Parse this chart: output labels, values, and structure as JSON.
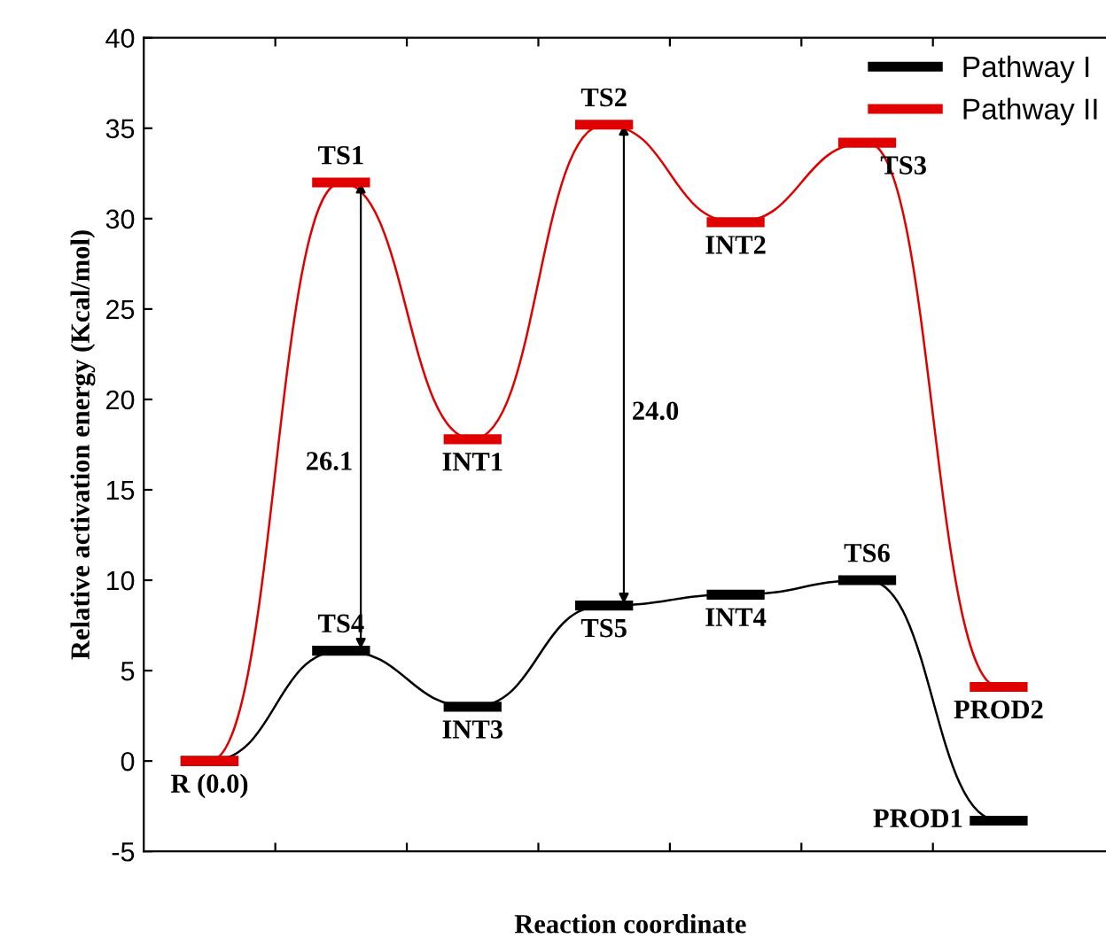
{
  "chart_data": {
    "type": "line",
    "xlabel": "Reaction coordinate",
    "ylabel": "Relative activation energy (Kcal/mol)",
    "categories": [
      null,
      null,
      null,
      null,
      null,
      null,
      null
    ],
    "ylim": [
      -5,
      40
    ],
    "yticks": [
      -5,
      0,
      5,
      10,
      15,
      20,
      25,
      30,
      35,
      40
    ],
    "grid": false,
    "legend": "top right",
    "series": [
      {
        "name": "Pathway I",
        "color": "#000000",
        "values": [
          0.0,
          6.1,
          3.0,
          8.6,
          9.2,
          10.0,
          -3.3
        ],
        "value_labels": [
          null,
          "TS4",
          "INT3",
          "TS5",
          "INT4",
          "TS6",
          "PROD1"
        ]
      },
      {
        "name": "Pathway II",
        "color": "#e00000",
        "values": [
          0.0,
          32.0,
          17.8,
          35.2,
          29.8,
          34.2,
          4.1
        ],
        "value_labels": [
          "R (0.0)",
          "TS1",
          "INT1",
          "TS2",
          "INT2",
          "TS3",
          "PROD2"
        ]
      }
    ],
    "annotations": [
      "26.1",
      "24.0"
    ]
  }
}
